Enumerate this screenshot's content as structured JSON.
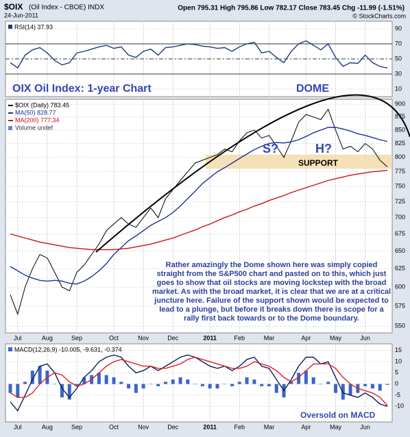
{
  "header": {
    "symbol": "$OIX",
    "name": "(Oil Index - CBOE) INDX",
    "date": "24-Jun-2011",
    "quote": "Open 795.31 High 795.86 Low 782.17 Close 783.45 Chg -11.99 (-1.51%)",
    "credit": "© StockCharts.com"
  },
  "chart_data": [
    {
      "type": "line",
      "legend": "RSI(14) 37.93",
      "series": [
        {
          "color": "#1f3b7a",
          "values": [
            45,
            38,
            55,
            62,
            65,
            58,
            48,
            42,
            45,
            58,
            60,
            63,
            66,
            68,
            64,
            66,
            55,
            52,
            60,
            63,
            55,
            65,
            66,
            68,
            70,
            69,
            67,
            66,
            64,
            65,
            60,
            66,
            70,
            72,
            58,
            60,
            52,
            45,
            60,
            70,
            74,
            68,
            62,
            70,
            52,
            40,
            45,
            44,
            55,
            45,
            40,
            37.93
          ]
        }
      ],
      "ylim": [
        0,
        100
      ],
      "yticks": [
        10,
        30,
        50,
        70,
        90
      ],
      "reference_lines": [
        70,
        30
      ],
      "dashed_line": 50,
      "annotations": [
        "OIX Oil Index: 1-year Chart",
        "DOME"
      ]
    },
    {
      "type": "line",
      "log_scale": true,
      "categories": [
        null,
        "Jul",
        null,
        null,
        null,
        "Aug",
        null,
        null,
        null,
        "Sep",
        null,
        null,
        null,
        null,
        "Oct",
        null,
        null,
        null,
        "Nov",
        null,
        null,
        null,
        "Dec",
        null,
        null,
        null,
        null,
        "2011",
        null,
        null,
        null,
        "Feb",
        null,
        null,
        null,
        "Mar",
        null,
        null,
        null,
        null,
        "Apr",
        null,
        null,
        null,
        "May",
        null,
        null,
        null,
        "Jun",
        null,
        null,
        null
      ],
      "series": [
        {
          "name": "$OIX (Daily) 783.45",
          "color": "#000000",
          "values": [
            590,
            565,
            600,
            625,
            645,
            640,
            620,
            600,
            595,
            620,
            630,
            645,
            660,
            680,
            690,
            700,
            690,
            685,
            700,
            715,
            700,
            730,
            745,
            760,
            775,
            790,
            795,
            800,
            805,
            815,
            810,
            830,
            845,
            850,
            835,
            840,
            820,
            800,
            830,
            865,
            880,
            875,
            870,
            890,
            850,
            815,
            820,
            810,
            825,
            815,
            795,
            783.45
          ]
        },
        {
          "name": "MA(50) 828.77",
          "color": "#1c2f9e",
          "values": [
            628,
            622,
            616,
            612,
            609,
            608,
            609,
            608,
            605,
            604,
            608,
            614,
            622,
            632,
            645,
            655,
            665,
            672,
            680,
            688,
            694,
            700,
            708,
            718,
            730,
            742,
            755,
            765,
            775,
            782,
            790,
            798,
            806,
            814,
            820,
            825,
            827,
            826,
            828,
            832,
            838,
            845,
            850,
            855,
            855,
            852,
            848,
            843,
            840,
            836,
            832,
            828.77
          ]
        },
        {
          "name": "MA(200) 777.34",
          "color": "#d01010",
          "values": [
            675,
            672,
            669,
            666,
            663,
            661,
            659,
            657,
            655,
            654,
            653,
            652,
            652,
            652,
            652,
            653,
            654,
            656,
            658,
            660,
            663,
            666,
            669,
            673,
            677,
            681,
            686,
            690,
            695,
            700,
            704,
            709,
            713,
            718,
            722,
            727,
            731,
            735,
            740,
            744,
            748,
            752,
            756,
            760,
            763,
            766,
            769,
            771,
            773,
            775,
            776,
            777.34
          ]
        }
      ],
      "legend_extra": "Volume undef",
      "ylim": [
        542,
        910
      ],
      "yticks": [
        550,
        575,
        600,
        625,
        650,
        675,
        700,
        725,
        750,
        775,
        800,
        825,
        850,
        875,
        900
      ],
      "support": {
        "label": "SUPPORT",
        "range": [
          780,
          805
        ]
      },
      "annotations": [
        "S?",
        "H?"
      ],
      "note": "Rather amazingly the Dome shown here was simply copied straight from the S&P500 chart and pasted on to this, which just goes to show that oil stocks are moving lockstep with the broad market. As with the broad market, it is clear that we are at a critical juncture here. Failure of the support shown would be expected to lead to a plunge, but before it breaks down there is scope for a rally first back towards or to the Dome boundary."
    },
    {
      "type": "line",
      "legend": "MACD(12,26,9) -10.005, -9.631, -0.374",
      "categories": [
        null,
        "Jul",
        null,
        null,
        null,
        "Aug",
        null,
        null,
        null,
        "Sep",
        null,
        null,
        null,
        null,
        "Oct",
        null,
        null,
        null,
        "Nov",
        null,
        null,
        null,
        "Dec",
        null,
        null,
        null,
        null,
        "2011",
        null,
        null,
        null,
        "Feb",
        null,
        null,
        null,
        "Mar",
        null,
        null,
        null,
        null,
        "Apr",
        null,
        null,
        null,
        "May",
        null,
        null,
        null,
        "Jun",
        null,
        null,
        null
      ],
      "series": [
        {
          "type": "bar",
          "color": "#3a66c8",
          "values": [
            -4,
            -6,
            1,
            6,
            8,
            6,
            0,
            -6,
            -7,
            -1,
            3,
            4,
            5,
            4,
            3,
            1,
            -2,
            -4,
            -2,
            0,
            -1,
            1,
            2,
            3,
            2,
            0,
            -1,
            -2,
            -2,
            0,
            -1,
            1,
            3,
            2,
            -1,
            -1,
            -4,
            -6,
            1,
            5,
            6,
            3,
            0,
            1,
            -4,
            -7,
            -5,
            -4,
            -1,
            -2,
            -3,
            -0.374
          ]
        },
        {
          "color": "#0a1f5c",
          "values": [
            -8,
            -12,
            -5,
            2,
            8,
            9,
            5,
            -2,
            -6,
            -2,
            3,
            6,
            10,
            12,
            13,
            12,
            8,
            5,
            6,
            8,
            6,
            8,
            10,
            12,
            13,
            12,
            10,
            8,
            7,
            8,
            6,
            8,
            11,
            12,
            8,
            7,
            2,
            -3,
            2,
            8,
            12,
            12,
            9,
            10,
            3,
            -4,
            -5,
            -6,
            -4,
            -6,
            -9,
            -10.005
          ]
        },
        {
          "color": "#e02020",
          "values": [
            -4,
            -6,
            -6,
            -4,
            0,
            3,
            5,
            4,
            1,
            -1,
            0,
            2,
            5,
            8,
            10,
            11,
            10,
            9,
            8,
            8,
            7,
            7,
            8,
            9,
            11,
            12,
            11,
            10,
            9,
            8,
            7,
            7,
            8,
            10,
            9,
            8,
            6,
            3,
            1,
            3,
            6,
            9,
            9,
            9,
            7,
            3,
            0,
            -2,
            -3,
            -4,
            -6,
            -9.631
          ]
        }
      ],
      "ylim": [
        -17,
        18
      ],
      "yticks": [
        -10,
        -5,
        0,
        5,
        10,
        15
      ],
      "annotations": [
        "Oversold on MACD"
      ]
    }
  ]
}
